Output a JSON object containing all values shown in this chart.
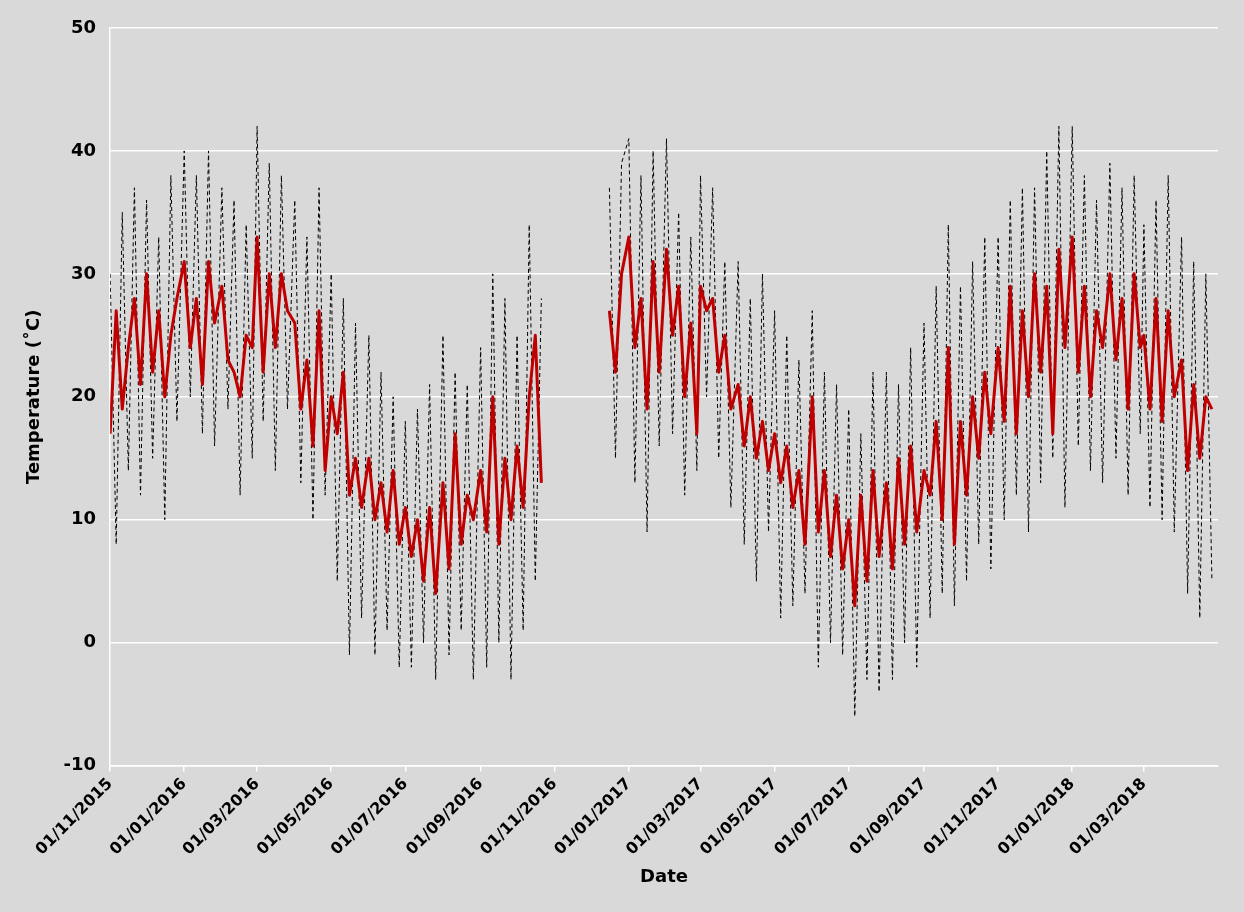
{
  "chart_data": {
    "type": "line",
    "xlabel": "Date",
    "ylabel": "Temperature (˚C)",
    "x": [
      "2015-11-01",
      "2015-11-06",
      "2015-11-11",
      "2015-11-16",
      "2015-11-21",
      "2015-11-26",
      "2015-12-01",
      "2015-12-06",
      "2015-12-11",
      "2015-12-16",
      "2015-12-21",
      "2015-12-26",
      "2016-01-01",
      "2016-01-06",
      "2016-01-11",
      "2016-01-16",
      "2016-01-21",
      "2016-01-26",
      "2016-02-01",
      "2016-02-06",
      "2016-02-11",
      "2016-02-16",
      "2016-02-21",
      "2016-02-26",
      "2016-03-01",
      "2016-03-06",
      "2016-03-11",
      "2016-03-16",
      "2016-03-21",
      "2016-03-26",
      "2016-04-01",
      "2016-04-06",
      "2016-04-11",
      "2016-04-16",
      "2016-04-21",
      "2016-04-26",
      "2016-05-01",
      "2016-05-06",
      "2016-05-11",
      "2016-05-16",
      "2016-05-21",
      "2016-05-26",
      "2016-06-01",
      "2016-06-06",
      "2016-06-11",
      "2016-06-16",
      "2016-06-21",
      "2016-06-26",
      "2016-07-01",
      "2016-07-06",
      "2016-07-11",
      "2016-07-16",
      "2016-07-21",
      "2016-07-26",
      "2016-08-01",
      "2016-08-06",
      "2016-08-11",
      "2016-08-16",
      "2016-08-21",
      "2016-08-26",
      "2016-09-01",
      "2016-09-06",
      "2016-09-11",
      "2016-09-16",
      "2016-09-21",
      "2016-09-26",
      "2016-10-01",
      "2016-10-06",
      "2016-10-11",
      "2016-10-16",
      "2016-10-21",
      "2016-11-16",
      "2016-12-16",
      "2016-12-21",
      "2016-12-26",
      "2017-01-01",
      "2017-01-06",
      "2017-01-11",
      "2017-01-16",
      "2017-01-21",
      "2017-01-26",
      "2017-02-01",
      "2017-02-06",
      "2017-02-11",
      "2017-02-16",
      "2017-02-21",
      "2017-02-26",
      "2017-03-01",
      "2017-03-06",
      "2017-03-11",
      "2017-03-16",
      "2017-03-21",
      "2017-03-26",
      "2017-04-01",
      "2017-04-06",
      "2017-04-11",
      "2017-04-16",
      "2017-04-21",
      "2017-04-26",
      "2017-05-01",
      "2017-05-06",
      "2017-05-11",
      "2017-05-16",
      "2017-05-21",
      "2017-05-26",
      "2017-06-01",
      "2017-06-06",
      "2017-06-11",
      "2017-06-16",
      "2017-06-21",
      "2017-06-26",
      "2017-07-01",
      "2017-07-06",
      "2017-07-11",
      "2017-07-16",
      "2017-07-21",
      "2017-07-26",
      "2017-08-01",
      "2017-08-06",
      "2017-08-11",
      "2017-08-16",
      "2017-08-21",
      "2017-08-26",
      "2017-09-01",
      "2017-09-06",
      "2017-09-11",
      "2017-09-16",
      "2017-09-21",
      "2017-09-26",
      "2017-10-01",
      "2017-10-06",
      "2017-10-11",
      "2017-10-16",
      "2017-10-21",
      "2017-10-26",
      "2017-11-01",
      "2017-11-06",
      "2017-11-11",
      "2017-11-16",
      "2017-11-21",
      "2017-11-26",
      "2017-12-01",
      "2017-12-06",
      "2017-12-11",
      "2017-12-16",
      "2017-12-21",
      "2017-12-26",
      "2018-01-01",
      "2018-01-06",
      "2018-01-11",
      "2018-01-16",
      "2018-01-21",
      "2018-01-26",
      "2018-02-01",
      "2018-02-06",
      "2018-02-11",
      "2018-02-16",
      "2018-02-21",
      "2018-02-26",
      "2018-03-01",
      "2018-03-06",
      "2018-03-11",
      "2018-03-16",
      "2018-03-21",
      "2018-03-26",
      "2018-04-01",
      "2018-04-06",
      "2018-04-11",
      "2018-04-16",
      "2018-04-21",
      "2018-04-26"
    ],
    "series": [
      {
        "color": "#000000",
        "line_style": "dashed",
        "values": [
          30,
          8,
          35,
          14,
          37,
          12,
          36,
          15,
          33,
          10,
          38,
          18,
          40,
          20,
          38,
          17,
          40,
          16,
          37,
          19,
          36,
          12,
          34,
          15,
          42,
          18,
          39,
          14,
          38,
          19,
          36,
          13,
          33,
          10,
          37,
          12,
          30,
          5,
          28,
          -1,
          26,
          2,
          25,
          -1,
          22,
          1,
          20,
          -2,
          18,
          -2,
          19,
          0,
          21,
          -3,
          25,
          -1,
          22,
          1,
          21,
          -3,
          24,
          -2,
          30,
          0,
          28,
          -3,
          25,
          1,
          34,
          5,
          28,
          null,
          37,
          15,
          39,
          41,
          13,
          38,
          9,
          40,
          16,
          41,
          17,
          35,
          12,
          33,
          14,
          38,
          20,
          37,
          15,
          31,
          11,
          31,
          8,
          28,
          5,
          30,
          9,
          27,
          2,
          25,
          3,
          23,
          4,
          27,
          -2,
          22,
          0,
          21,
          -1,
          19,
          -6,
          17,
          -3,
          22,
          -4,
          22,
          -3,
          21,
          0,
          24,
          -2,
          26,
          2,
          29,
          4,
          34,
          3,
          29,
          5,
          31,
          8,
          33,
          6,
          33,
          10,
          36,
          12,
          37,
          9,
          37,
          13,
          40,
          15,
          42,
          11,
          42,
          16,
          38,
          14,
          36,
          13,
          39,
          15,
          37,
          12,
          38,
          17,
          34,
          11,
          36,
          10,
          38,
          9,
          33,
          4,
          31,
          2,
          30,
          5
        ]
      },
      {
        "color": "#c00000",
        "line_style": "solid",
        "values": [
          17,
          27,
          19,
          24,
          28,
          21,
          30,
          22,
          27,
          20,
          25,
          28,
          31,
          24,
          28,
          21,
          31,
          26,
          29,
          23,
          22,
          20,
          25,
          24,
          33,
          22,
          30,
          24,
          30,
          27,
          26,
          19,
          23,
          16,
          27,
          14,
          20,
          17,
          22,
          12,
          15,
          11,
          15,
          10,
          13,
          9,
          14,
          8,
          11,
          7,
          10,
          5,
          11,
          4,
          13,
          6,
          17,
          8,
          12,
          10,
          14,
          9,
          20,
          8,
          15,
          10,
          16,
          11,
          20,
          25,
          13,
          null,
          27,
          22,
          30,
          33,
          24,
          28,
          19,
          31,
          22,
          32,
          25,
          29,
          20,
          26,
          17,
          29,
          27,
          28,
          22,
          25,
          19,
          21,
          16,
          20,
          15,
          18,
          14,
          17,
          13,
          16,
          11,
          14,
          8,
          20,
          9,
          14,
          7,
          12,
          6,
          10,
          3,
          12,
          5,
          14,
          7,
          13,
          6,
          15,
          8,
          16,
          9,
          14,
          12,
          18,
          10,
          24,
          8,
          18,
          12,
          20,
          15,
          22,
          17,
          24,
          18,
          29,
          17,
          27,
          20,
          30,
          22,
          29,
          17,
          32,
          24,
          33,
          22,
          29,
          20,
          27,
          24,
          30,
          23,
          28,
          19,
          30,
          24,
          25,
          19,
          28,
          18,
          27,
          20,
          23,
          14,
          21,
          15,
          20,
          19
        ]
      }
    ],
    "xlim": [
      "2015-11-01",
      "2018-05-01"
    ],
    "xticks": [
      {
        "value": "2015-11-01",
        "label": "01/11/2015"
      },
      {
        "value": "2016-01-01",
        "label": "01/01/2016"
      },
      {
        "value": "2016-03-01",
        "label": "01/03/2016"
      },
      {
        "value": "2016-05-01",
        "label": "01/05/2016"
      },
      {
        "value": "2016-07-01",
        "label": "01/07/2016"
      },
      {
        "value": "2016-09-01",
        "label": "01/09/2016"
      },
      {
        "value": "2016-11-01",
        "label": "01/11/2016"
      },
      {
        "value": "2017-01-01",
        "label": "01/01/2017"
      },
      {
        "value": "2017-03-01",
        "label": "01/03/2017"
      },
      {
        "value": "2017-05-01",
        "label": "01/05/2017"
      },
      {
        "value": "2017-07-01",
        "label": "01/07/2017"
      },
      {
        "value": "2017-09-01",
        "label": "01/09/2017"
      },
      {
        "value": "2017-11-01",
        "label": "01/11/2017"
      },
      {
        "value": "2018-01-01",
        "label": "01/01/2018"
      },
      {
        "value": "2018-03-01",
        "label": "01/03/2018"
      }
    ],
    "ylim": [
      -10,
      50
    ],
    "yticks": [
      -10,
      0,
      10,
      20,
      30,
      40,
      50
    ],
    "grid": "y",
    "marker": "none"
  }
}
